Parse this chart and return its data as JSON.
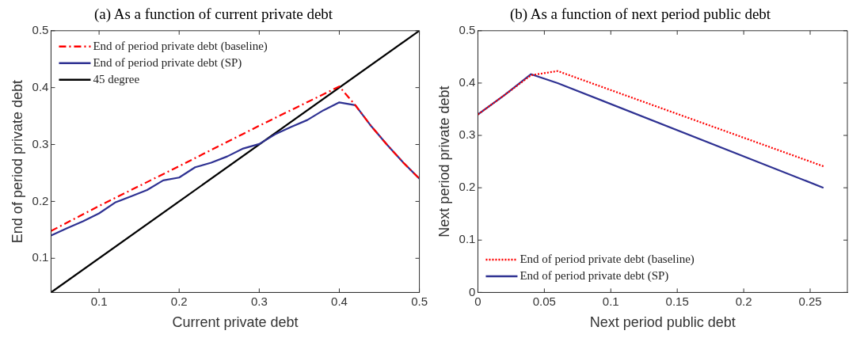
{
  "chart_data": [
    {
      "type": "line",
      "title": "(a) As a function of current private debt",
      "xlabel": "Current private debt",
      "ylabel": "End of period private debt",
      "xlim": [
        0.04,
        0.5
      ],
      "ylim": [
        0.04,
        0.5
      ],
      "xticks": [
        0.1,
        0.2,
        0.3,
        0.4,
        0.5
      ],
      "yticks": [
        0.1,
        0.2,
        0.3,
        0.4,
        0.5
      ],
      "grid": false,
      "legend": "top left",
      "series": [
        {
          "name": "End of period private debt (baseline)",
          "color": "#ff0000",
          "line_style": "dashed",
          "x": [
            0.04,
            0.1,
            0.2,
            0.3,
            0.4,
            0.42,
            0.44,
            0.46,
            0.48,
            0.5
          ],
          "values": [
            0.148,
            0.192,
            0.262,
            0.333,
            0.402,
            0.369,
            0.332,
            0.299,
            0.268,
            0.24
          ]
        },
        {
          "name": "End of period private debt (SP)",
          "color": "#2e3192",
          "line_style": "solid",
          "x": [
            0.04,
            0.06,
            0.08,
            0.1,
            0.12,
            0.14,
            0.16,
            0.18,
            0.2,
            0.22,
            0.24,
            0.26,
            0.28,
            0.3,
            0.32,
            0.34,
            0.36,
            0.38,
            0.4,
            0.42,
            0.44,
            0.46,
            0.48,
            0.5
          ],
          "values": [
            0.14,
            0.153,
            0.165,
            0.179,
            0.198,
            0.209,
            0.22,
            0.237,
            0.242,
            0.26,
            0.268,
            0.279,
            0.293,
            0.301,
            0.318,
            0.331,
            0.343,
            0.36,
            0.374,
            0.369,
            0.332,
            0.299,
            0.268,
            0.24
          ]
        },
        {
          "name": "45 degree",
          "color": "#000000",
          "line_style": "solid",
          "x": [
            0.04,
            0.5
          ],
          "values": [
            0.04,
            0.5
          ]
        }
      ]
    },
    {
      "type": "line",
      "title": "(b) As a function of next period public debt",
      "xlabel": "Next period public debt",
      "ylabel": "Next period private debt",
      "xlim": [
        0,
        0.278
      ],
      "ylim": [
        0,
        0.5
      ],
      "xticks": [
        0,
        0.05,
        0.1,
        0.15,
        0.2,
        0.25
      ],
      "yticks": [
        0,
        0.1,
        0.2,
        0.3,
        0.4,
        0.5
      ],
      "grid": false,
      "legend": "bottom left",
      "series": [
        {
          "name": "End of period private debt (baseline)",
          "color": "#ff0000",
          "line_style": "dotted",
          "x": [
            0,
            0.02,
            0.04,
            0.06,
            0.26
          ],
          "values": [
            0.34,
            0.377,
            0.415,
            0.423,
            0.241
          ]
        },
        {
          "name": "End of period private debt (SP)",
          "color": "#2e3192",
          "line_style": "solid",
          "x": [
            0,
            0.02,
            0.04,
            0.06,
            0.26
          ],
          "values": [
            0.34,
            0.377,
            0.417,
            0.4,
            0.2
          ]
        }
      ]
    }
  ]
}
